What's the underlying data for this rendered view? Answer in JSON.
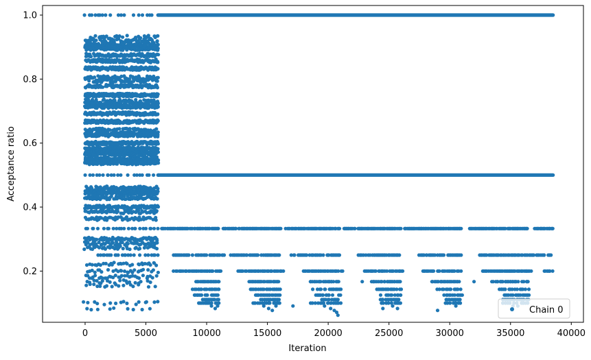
{
  "chart_data": {
    "type": "scatter",
    "title": "",
    "xlabel": "Iteration",
    "ylabel": "Acceptance ratio",
    "xlim": [
      -3500,
      41000
    ],
    "ylim": [
      0.04,
      1.03
    ],
    "x_ticks": [
      0,
      5000,
      10000,
      15000,
      20000,
      25000,
      30000,
      35000,
      40000
    ],
    "x_tick_labels": [
      "0",
      "5000",
      "10000",
      "15000",
      "20000",
      "25000",
      "30000",
      "35000",
      "40000"
    ],
    "y_ticks": [
      0.2,
      0.4,
      0.6,
      0.8,
      1.0
    ],
    "y_tick_labels": [
      "0.2",
      "0.4",
      "0.6",
      "0.8",
      "1.0"
    ],
    "grid": false,
    "legend_position": "bottom-right",
    "marker_color": "#1f77b4",
    "series": [
      {
        "name": "Chain 0",
        "bands": [
          {
            "y": 1.0,
            "segments": [
              [
                0,
                6000,
                250
              ],
              [
                6000,
                38500,
                1
              ]
            ]
          },
          {
            "y": 0.5,
            "segments": [
              [
                0,
                6000,
                250
              ],
              [
                6000,
                38500,
                1
              ]
            ]
          },
          {
            "y": 0.333,
            "segments": [
              [
                0,
                6000,
                250
              ],
              [
                6300,
                11000,
                60
              ],
              [
                11300,
                16200,
                60
              ],
              [
                16500,
                21000,
                60
              ],
              [
                21300,
                26000,
                60
              ],
              [
                26300,
                31000,
                60
              ],
              [
                31600,
                36500,
                60
              ],
              [
                37000,
                38500,
                60
              ]
            ]
          },
          {
            "y": 0.25,
            "segments": [
              [
                1000,
                6000,
                200
              ],
              [
                7300,
                11500,
                90
              ],
              [
                12000,
                16000,
                90
              ],
              [
                17000,
                21000,
                90
              ],
              [
                22500,
                26000,
                90
              ],
              [
                27500,
                31000,
                90
              ],
              [
                32500,
                38500,
                90
              ]
            ]
          },
          {
            "y": 0.2,
            "segments": [
              [
                7300,
                11200,
                90
              ],
              [
                12600,
                16300,
                90
              ],
              [
                18000,
                21200,
                90
              ],
              [
                23000,
                26200,
                90
              ],
              [
                27800,
                31000,
                90
              ],
              [
                32700,
                36800,
                90
              ],
              [
                37800,
                38500,
                90
              ]
            ]
          },
          {
            "y": 0.167,
            "segments": [
              [
                9100,
                11000,
                90
              ],
              [
                13500,
                16000,
                90
              ],
              [
                18500,
                21000,
                90
              ],
              [
                23500,
                26000,
                90
              ],
              [
                28500,
                31000,
                90
              ],
              [
                33500,
                36500,
                90
              ]
            ]
          },
          {
            "y": 0.143,
            "segments": [
              [
                8800,
                11000,
                100
              ],
              [
                13600,
                16000,
                100
              ],
              [
                18700,
                21000,
                100
              ],
              [
                24000,
                26000,
                100
              ],
              [
                29000,
                31000,
                100
              ],
              [
                34000,
                36500,
                100
              ]
            ]
          },
          {
            "y": 0.125,
            "segments": [
              [
                9000,
                11000,
                100
              ],
              [
                14000,
                16000,
                100
              ],
              [
                19000,
                21000,
                100
              ],
              [
                24200,
                26000,
                100
              ],
              [
                29400,
                31000,
                100
              ],
              [
                34500,
                36500,
                100
              ]
            ]
          },
          {
            "y": 0.111,
            "segments": [
              [
                9700,
                11000,
                100
              ],
              [
                14500,
                16000,
                100
              ],
              [
                19500,
                21000,
                100
              ],
              [
                24300,
                25800,
                100
              ],
              [
                29700,
                30800,
                100
              ],
              [
                34400,
                36500,
                100
              ]
            ]
          },
          {
            "y": 0.1,
            "segments": [
              [
                9300,
                11000,
                120
              ],
              [
                13800,
                16000,
                120
              ],
              [
                18600,
                21000,
                120
              ],
              [
                24300,
                26000,
                130
              ],
              [
                29700,
                31000,
                140
              ],
              [
                34300,
                36500,
                140
              ]
            ]
          }
        ],
        "points": [
          [
            10400,
            0.091
          ],
          [
            10700,
            0.083
          ],
          [
            10900,
            0.091
          ],
          [
            14700,
            0.091
          ],
          [
            15100,
            0.083
          ],
          [
            15400,
            0.077
          ],
          [
            15700,
            0.091
          ],
          [
            19700,
            0.091
          ],
          [
            20200,
            0.083
          ],
          [
            20500,
            0.077
          ],
          [
            20700,
            0.071
          ],
          [
            20800,
            0.062
          ],
          [
            25300,
            0.091
          ],
          [
            25700,
            0.083
          ],
          [
            30500,
            0.091
          ],
          [
            35200,
            0.091
          ],
          [
            35600,
            0.091
          ],
          [
            29000,
            0.077
          ],
          [
            24500,
            0.083
          ],
          [
            17100,
            0.091
          ],
          [
            22800,
            0.167
          ],
          [
            32000,
            0.167
          ]
        ],
        "early_bands": [
          {
            "y": 0.917,
            "from": 0,
            "to": 6000,
            "step": 30,
            "jitter": 0.02
          },
          {
            "y": 0.9,
            "from": 0,
            "to": 6000,
            "step": 30,
            "jitter": 0.01
          },
          {
            "y": 0.875,
            "from": 0,
            "to": 6000,
            "step": 60,
            "jitter": 0.005
          },
          {
            "y": 0.857,
            "from": 0,
            "to": 6000,
            "step": 50,
            "jitter": 0.005
          },
          {
            "y": 0.833,
            "from": 0,
            "to": 6000,
            "step": 40,
            "jitter": 0.005
          },
          {
            "y": 0.8,
            "from": 0,
            "to": 6000,
            "step": 40,
            "jitter": 0.01
          },
          {
            "y": 0.778,
            "from": 0,
            "to": 6000,
            "step": 50,
            "jitter": 0.005
          },
          {
            "y": 0.75,
            "from": 0,
            "to": 6000,
            "step": 30,
            "jitter": 0.005
          },
          {
            "y": 0.727,
            "from": 0,
            "to": 6000,
            "step": 40,
            "jitter": 0.01
          },
          {
            "y": 0.714,
            "from": 0,
            "to": 6000,
            "step": 40,
            "jitter": 0.005
          },
          {
            "y": 0.692,
            "from": 0,
            "to": 6000,
            "step": 50,
            "jitter": 0.005
          },
          {
            "y": 0.667,
            "from": 0,
            "to": 6000,
            "step": 30,
            "jitter": 0.005
          },
          {
            "y": 0.636,
            "from": 0,
            "to": 6000,
            "step": 40,
            "jitter": 0.01
          },
          {
            "y": 0.625,
            "from": 0,
            "to": 6000,
            "step": 40,
            "jitter": 0.005
          },
          {
            "y": 0.6,
            "from": 0,
            "to": 6000,
            "step": 30,
            "jitter": 0.005
          },
          {
            "y": 0.583,
            "from": 0,
            "to": 6000,
            "step": 40,
            "jitter": 0.005
          },
          {
            "y": 0.571,
            "from": 0,
            "to": 6000,
            "step": 40,
            "jitter": 0.005
          },
          {
            "y": 0.556,
            "from": 0,
            "to": 6000,
            "step": 40,
            "jitter": 0.01
          },
          {
            "y": 0.545,
            "from": 0,
            "to": 6000,
            "step": 40,
            "jitter": 0.005
          },
          {
            "y": 0.538,
            "from": 0,
            "to": 6000,
            "step": 50,
            "jitter": 0.005
          },
          {
            "y": 0.455,
            "from": 0,
            "to": 6000,
            "step": 40,
            "jitter": 0.01
          },
          {
            "y": 0.444,
            "from": 0,
            "to": 6000,
            "step": 50,
            "jitter": 0.005
          },
          {
            "y": 0.429,
            "from": 0,
            "to": 6000,
            "step": 70,
            "jitter": 0.005
          },
          {
            "y": 0.4,
            "from": 0,
            "to": 6000,
            "step": 60,
            "jitter": 0.005
          },
          {
            "y": 0.385,
            "from": 0,
            "to": 6000,
            "step": 90,
            "jitter": 0.005
          },
          {
            "y": 0.364,
            "from": 0,
            "to": 6000,
            "step": 90,
            "jitter": 0.005
          },
          {
            "y": 0.3,
            "from": 0,
            "to": 6000,
            "step": 70,
            "jitter": 0.005
          },
          {
            "y": 0.286,
            "from": 0,
            "to": 6000,
            "step": 110,
            "jitter": 0.005
          },
          {
            "y": 0.273,
            "from": 0,
            "to": 6000,
            "step": 140,
            "jitter": 0.005
          },
          {
            "y": 0.222,
            "from": 0,
            "to": 6000,
            "step": 160,
            "jitter": 0.005
          },
          {
            "y": 0.2,
            "from": 0,
            "to": 6000,
            "step": 180,
            "jitter": 0.005
          },
          {
            "y": 0.182,
            "from": 0,
            "to": 6000,
            "step": 180,
            "jitter": 0.005
          },
          {
            "y": 0.167,
            "from": 0,
            "to": 6000,
            "step": 220,
            "jitter": 0.005
          },
          {
            "y": 0.154,
            "from": 0,
            "to": 6000,
            "step": 300,
            "jitter": 0.005
          },
          {
            "y": 0.1,
            "from": 0,
            "to": 6000,
            "step": 400,
            "jitter": 0.005
          },
          {
            "y": 0.083,
            "from": 0,
            "to": 6000,
            "step": 500,
            "jitter": 0.005
          }
        ]
      }
    ]
  }
}
